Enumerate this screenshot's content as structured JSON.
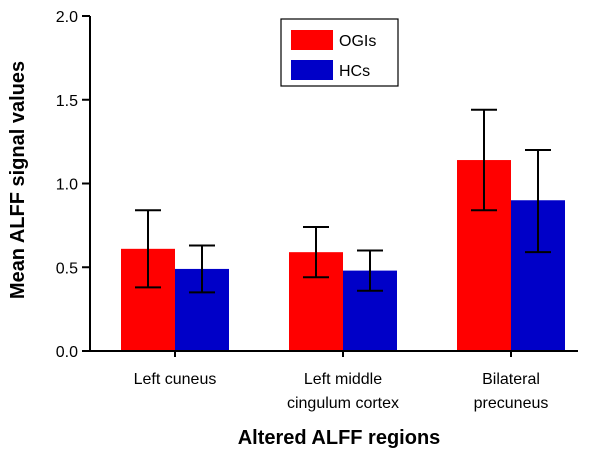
{
  "chart_data": {
    "type": "bar",
    "title": "",
    "xlabel": "Altered ALFF regions",
    "ylabel": "Mean ALFF signal values",
    "ylim": [
      0,
      2.0
    ],
    "yticks": [
      "0.0",
      "0.5",
      "1.0",
      "1.5",
      "2.0"
    ],
    "categories": [
      [
        "Left cuneus"
      ],
      [
        "Left middle",
        "cingulum cortex"
      ],
      [
        "Bilateral",
        "precuneus"
      ]
    ],
    "series": [
      {
        "name": "OGIs",
        "color": "#ff0000",
        "values": [
          0.61,
          0.59,
          1.14
        ],
        "error_low": [
          0.38,
          0.44,
          0.84
        ],
        "error_high": [
          0.84,
          0.74,
          1.44
        ]
      },
      {
        "name": "HCs",
        "color": "#0000c8",
        "values": [
          0.49,
          0.48,
          0.9
        ],
        "error_low": [
          0.35,
          0.36,
          0.59
        ],
        "error_high": [
          0.63,
          0.6,
          1.2
        ]
      }
    ],
    "legend_position": "top-center",
    "grid": false
  }
}
